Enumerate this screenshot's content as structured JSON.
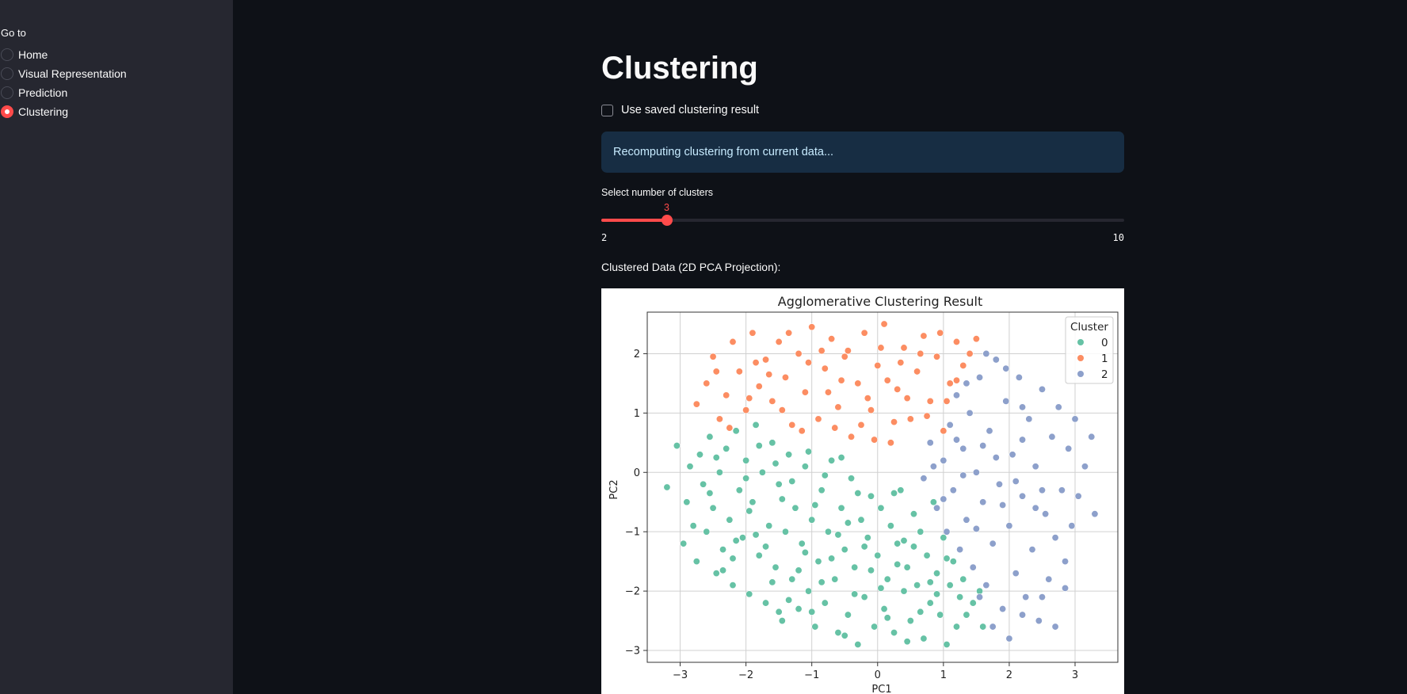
{
  "sidebar": {
    "heading": "Go to",
    "items": [
      {
        "label": "Home",
        "selected": false
      },
      {
        "label": "Visual Representation",
        "selected": false
      },
      {
        "label": "Prediction",
        "selected": false
      },
      {
        "label": "Clustering",
        "selected": true
      }
    ]
  },
  "main": {
    "title": "Clustering",
    "checkbox_label": "Use saved clustering result",
    "checkbox_checked": false,
    "info_message": "Recomputing clustering from current data...",
    "slider": {
      "label": "Select number of clusters",
      "value": 3,
      "min": 2,
      "max": 10,
      "value_text": "3",
      "min_text": "2",
      "max_text": "10"
    },
    "section_label": "Clustered Data (2D PCA Projection):"
  },
  "colors": {
    "accent": "#ff4b4b",
    "info_bg": "#172d43",
    "info_text": "#c7ebff",
    "cluster_0": "#66c2a5",
    "cluster_1": "#fc8d62",
    "cluster_2": "#8da0cb"
  },
  "chart_data": {
    "type": "scatter",
    "title": "Agglomerative Clustering Result",
    "xlabel": "PC1",
    "ylabel": "PC2",
    "xlim": [
      -3.5,
      3.65
    ],
    "ylim": [
      -3.2,
      2.7
    ],
    "xticks": [
      -3,
      -2,
      -1,
      0,
      1,
      2,
      3
    ],
    "yticks": [
      -3,
      -2,
      -1,
      0,
      1,
      2
    ],
    "grid": true,
    "legend": {
      "title": "Cluster",
      "position": "top-right",
      "entries": [
        "0",
        "1",
        "2"
      ]
    },
    "series": [
      {
        "name": "0",
        "color": "#66c2a5",
        "points": [
          [
            -3.2,
            -0.25
          ],
          [
            -3.05,
            0.45
          ],
          [
            -2.95,
            -1.2
          ],
          [
            -2.9,
            -0.5
          ],
          [
            -2.85,
            0.1
          ],
          [
            -2.8,
            -0.9
          ],
          [
            -2.75,
            -1.5
          ],
          [
            -2.7,
            0.3
          ],
          [
            -2.65,
            -0.2
          ],
          [
            -2.6,
            -1.0
          ],
          [
            -2.55,
            0.6
          ],
          [
            -2.5,
            -0.6
          ],
          [
            -2.45,
            -1.7
          ],
          [
            -2.4,
            0.0
          ],
          [
            -2.35,
            -1.3
          ],
          [
            -2.3,
            0.4
          ],
          [
            -2.25,
            -0.8
          ],
          [
            -2.2,
            -1.9
          ],
          [
            -2.15,
            0.7
          ],
          [
            -2.1,
            -0.3
          ],
          [
            -2.05,
            -1.1
          ],
          [
            -2.0,
            0.2
          ],
          [
            -1.95,
            -2.05
          ],
          [
            -1.9,
            -0.5
          ],
          [
            -1.85,
            0.8
          ],
          [
            -1.8,
            -1.4
          ],
          [
            -1.75,
            0.0
          ],
          [
            -1.7,
            -2.2
          ],
          [
            -1.65,
            -0.9
          ],
          [
            -1.6,
            0.5
          ],
          [
            -1.55,
            -1.6
          ],
          [
            -1.5,
            -0.2
          ],
          [
            -1.45,
            -2.5
          ],
          [
            -1.4,
            -1.0
          ],
          [
            -1.35,
            0.3
          ],
          [
            -1.3,
            -1.8
          ],
          [
            -1.25,
            -0.6
          ],
          [
            -1.2,
            -2.3
          ],
          [
            -1.15,
            -1.2
          ],
          [
            -1.1,
            0.1
          ],
          [
            -1.05,
            -2.0
          ],
          [
            -1.0,
            -0.8
          ],
          [
            -0.95,
            -2.6
          ],
          [
            -0.9,
            -1.5
          ],
          [
            -0.85,
            -0.3
          ],
          [
            -0.8,
            -2.2
          ],
          [
            -0.75,
            -1.0
          ],
          [
            -0.7,
            0.2
          ],
          [
            -0.65,
            -1.8
          ],
          [
            -0.6,
            -2.7
          ],
          [
            -0.55,
            -0.6
          ],
          [
            -0.5,
            -1.3
          ],
          [
            -0.45,
            -2.4
          ],
          [
            -0.4,
            -0.1
          ],
          [
            -0.35,
            -1.6
          ],
          [
            -0.3,
            -2.9
          ],
          [
            -0.25,
            -0.8
          ],
          [
            -0.2,
            -2.1
          ],
          [
            -0.15,
            -1.1
          ],
          [
            -0.1,
            -0.4
          ],
          [
            -0.05,
            -2.6
          ],
          [
            0.0,
            -1.4
          ],
          [
            0.05,
            -0.6
          ],
          [
            0.1,
            -2.3
          ],
          [
            0.15,
            -1.8
          ],
          [
            0.2,
            -0.9
          ],
          [
            0.25,
            -2.7
          ],
          [
            0.3,
            -1.2
          ],
          [
            0.35,
            -0.3
          ],
          [
            0.4,
            -2.0
          ],
          [
            0.45,
            -1.6
          ],
          [
            0.5,
            -2.5
          ],
          [
            0.55,
            -0.7
          ],
          [
            0.6,
            -1.9
          ],
          [
            0.65,
            -1.0
          ],
          [
            0.7,
            -2.8
          ],
          [
            0.75,
            -1.4
          ],
          [
            0.8,
            -2.2
          ],
          [
            0.85,
            -0.5
          ],
          [
            0.9,
            -1.7
          ],
          [
            0.95,
            -2.4
          ],
          [
            1.0,
            -1.1
          ],
          [
            1.05,
            -2.9
          ],
          [
            1.1,
            -1.9
          ],
          [
            1.15,
            -1.5
          ],
          [
            1.2,
            -2.6
          ],
          [
            1.25,
            -2.1
          ],
          [
            1.3,
            -1.8
          ],
          [
            1.35,
            -2.4
          ],
          [
            1.45,
            -2.2
          ],
          [
            1.55,
            -2.0
          ],
          [
            1.6,
            -2.6
          ],
          [
            -2.55,
            -0.35
          ],
          [
            -2.45,
            0.25
          ],
          [
            -2.2,
            -1.45
          ],
          [
            -1.95,
            -0.65
          ],
          [
            -1.7,
            -1.25
          ],
          [
            -1.45,
            -0.45
          ],
          [
            -1.2,
            -1.65
          ],
          [
            -0.95,
            -0.55
          ],
          [
            -0.7,
            -1.45
          ],
          [
            -0.45,
            -0.85
          ],
          [
            -0.2,
            -1.25
          ],
          [
            0.05,
            -1.95
          ],
          [
            0.3,
            -1.55
          ],
          [
            0.55,
            -1.25
          ],
          [
            0.8,
            -1.85
          ],
          [
            1.05,
            -1.45
          ],
          [
            -1.85,
            -1.05
          ],
          [
            -1.6,
            -1.85
          ],
          [
            -1.35,
            -2.15
          ],
          [
            -1.1,
            -1.35
          ],
          [
            -0.85,
            -1.85
          ],
          [
            -0.6,
            -1.05
          ],
          [
            -0.35,
            -2.05
          ],
          [
            -0.1,
            -1.65
          ],
          [
            0.15,
            -2.45
          ],
          [
            0.4,
            -1.15
          ],
          [
            0.65,
            -2.35
          ],
          [
            0.9,
            -2.05
          ],
          [
            -2.0,
            -0.1
          ],
          [
            -1.8,
            0.45
          ],
          [
            -1.55,
            0.15
          ],
          [
            -1.3,
            -0.15
          ],
          [
            -1.05,
            0.35
          ],
          [
            -0.8,
            -0.05
          ],
          [
            -0.55,
            0.25
          ],
          [
            -0.3,
            -0.35
          ],
          [
            0.25,
            -0.35
          ],
          [
            -2.35,
            -1.65
          ],
          [
            -2.15,
            -1.15
          ],
          [
            -1.5,
            -2.35
          ],
          [
            -1.0,
            -2.35
          ],
          [
            -0.5,
            -2.75
          ],
          [
            0.45,
            -2.85
          ]
        ]
      },
      {
        "name": "1",
        "color": "#fc8d62",
        "points": [
          [
            -2.75,
            1.15
          ],
          [
            -2.6,
            1.5
          ],
          [
            -2.5,
            1.95
          ],
          [
            -2.4,
            0.9
          ],
          [
            -2.3,
            1.3
          ],
          [
            -2.2,
            2.2
          ],
          [
            -2.1,
            1.7
          ],
          [
            -2.0,
            1.05
          ],
          [
            -1.9,
            2.35
          ],
          [
            -1.8,
            1.45
          ],
          [
            -1.7,
            1.9
          ],
          [
            -1.6,
            1.2
          ],
          [
            -1.5,
            2.2
          ],
          [
            -1.4,
            1.6
          ],
          [
            -1.3,
            0.8
          ],
          [
            -1.2,
            2.0
          ],
          [
            -1.1,
            1.35
          ],
          [
            -1.0,
            2.45
          ],
          [
            -0.9,
            0.9
          ],
          [
            -0.8,
            1.75
          ],
          [
            -0.7,
            2.25
          ],
          [
            -0.6,
            1.1
          ],
          [
            -0.5,
            1.95
          ],
          [
            -0.4,
            0.6
          ],
          [
            -0.3,
            1.5
          ],
          [
            -0.2,
            2.35
          ],
          [
            -0.1,
            1.05
          ],
          [
            0.0,
            1.8
          ],
          [
            0.1,
            2.5
          ],
          [
            0.2,
            0.5
          ],
          [
            0.3,
            1.4
          ],
          [
            0.4,
            2.1
          ],
          [
            0.5,
            0.9
          ],
          [
            0.6,
            1.7
          ],
          [
            0.7,
            2.3
          ],
          [
            0.8,
            1.2
          ],
          [
            0.9,
            1.95
          ],
          [
            1.0,
            0.7
          ],
          [
            1.1,
            1.5
          ],
          [
            1.2,
            2.2
          ],
          [
            1.3,
            1.8
          ],
          [
            1.4,
            2.0
          ],
          [
            1.5,
            2.25
          ],
          [
            -2.25,
            0.75
          ],
          [
            -1.95,
            1.25
          ],
          [
            -1.65,
            1.65
          ],
          [
            -1.35,
            2.35
          ],
          [
            -1.05,
            1.85
          ],
          [
            -0.75,
            1.35
          ],
          [
            -0.45,
            2.05
          ],
          [
            -0.15,
            1.25
          ],
          [
            0.15,
            1.55
          ],
          [
            0.45,
            1.25
          ],
          [
            0.75,
            0.95
          ],
          [
            1.05,
            1.2
          ],
          [
            -1.85,
            1.85
          ],
          [
            -1.45,
            1.05
          ],
          [
            -1.15,
            0.7
          ],
          [
            -0.85,
            2.05
          ],
          [
            -0.55,
            1.55
          ],
          [
            -0.25,
            0.8
          ],
          [
            0.05,
            2.1
          ],
          [
            0.35,
            1.85
          ],
          [
            0.65,
            2.0
          ],
          [
            0.95,
            2.35
          ],
          [
            -2.45,
            1.7
          ],
          [
            -0.05,
            0.55
          ],
          [
            0.25,
            0.85
          ],
          [
            -0.65,
            0.75
          ],
          [
            1.2,
            1.55
          ]
        ]
      },
      {
        "name": "2",
        "color": "#8da0cb",
        "points": [
          [
            0.7,
            -0.1
          ],
          [
            0.8,
            0.5
          ],
          [
            0.9,
            -0.6
          ],
          [
            1.0,
            0.2
          ],
          [
            1.05,
            -1.0
          ],
          [
            1.1,
            0.8
          ],
          [
            1.15,
            -0.3
          ],
          [
            1.2,
            1.3
          ],
          [
            1.25,
            -1.3
          ],
          [
            1.3,
            0.4
          ],
          [
            1.35,
            -0.8
          ],
          [
            1.4,
            1.0
          ],
          [
            1.45,
            -1.6
          ],
          [
            1.5,
            0.0
          ],
          [
            1.55,
            1.6
          ],
          [
            1.6,
            -0.5
          ],
          [
            1.65,
            -1.9
          ],
          [
            1.7,
            0.7
          ],
          [
            1.75,
            -1.2
          ],
          [
            1.8,
            1.9
          ],
          [
            1.85,
            -0.2
          ],
          [
            1.9,
            -2.3
          ],
          [
            1.95,
            1.2
          ],
          [
            2.0,
            -0.9
          ],
          [
            2.05,
            0.3
          ],
          [
            2.1,
            -1.7
          ],
          [
            2.15,
            1.6
          ],
          [
            2.2,
            -0.4
          ],
          [
            2.25,
            -2.1
          ],
          [
            2.3,
            0.9
          ],
          [
            2.35,
            -1.3
          ],
          [
            2.4,
            0.1
          ],
          [
            2.45,
            -2.5
          ],
          [
            2.5,
            1.4
          ],
          [
            2.55,
            -0.7
          ],
          [
            2.6,
            -1.8
          ],
          [
            2.65,
            0.6
          ],
          [
            2.7,
            -1.1
          ],
          [
            2.75,
            1.1
          ],
          [
            2.8,
            -0.3
          ],
          [
            2.85,
            -1.5
          ],
          [
            2.9,
            0.4
          ],
          [
            2.95,
            -0.9
          ],
          [
            3.0,
            0.9
          ],
          [
            3.05,
            -0.4
          ],
          [
            3.15,
            0.1
          ],
          [
            3.25,
            0.6
          ],
          [
            3.3,
            -0.7
          ],
          [
            1.75,
            -2.6
          ],
          [
            2.0,
            -2.8
          ],
          [
            2.2,
            -2.4
          ],
          [
            2.5,
            -2.1
          ],
          [
            2.7,
            -2.6
          ],
          [
            1.55,
            -2.1
          ],
          [
            2.85,
            -1.95
          ],
          [
            1.35,
            1.5
          ],
          [
            1.65,
            2.0
          ],
          [
            1.95,
            1.75
          ],
          [
            2.2,
            1.1
          ],
          [
            0.85,
            0.1
          ],
          [
            1.2,
            0.55
          ],
          [
            1.5,
            -0.95
          ],
          [
            1.8,
            0.25
          ],
          [
            2.1,
            -0.15
          ],
          [
            2.4,
            -0.6
          ],
          [
            1.0,
            -0.45
          ],
          [
            1.3,
            -0.05
          ],
          [
            1.6,
            0.45
          ],
          [
            1.9,
            -0.55
          ],
          [
            2.2,
            0.55
          ],
          [
            2.5,
            -0.3
          ]
        ]
      }
    ]
  }
}
